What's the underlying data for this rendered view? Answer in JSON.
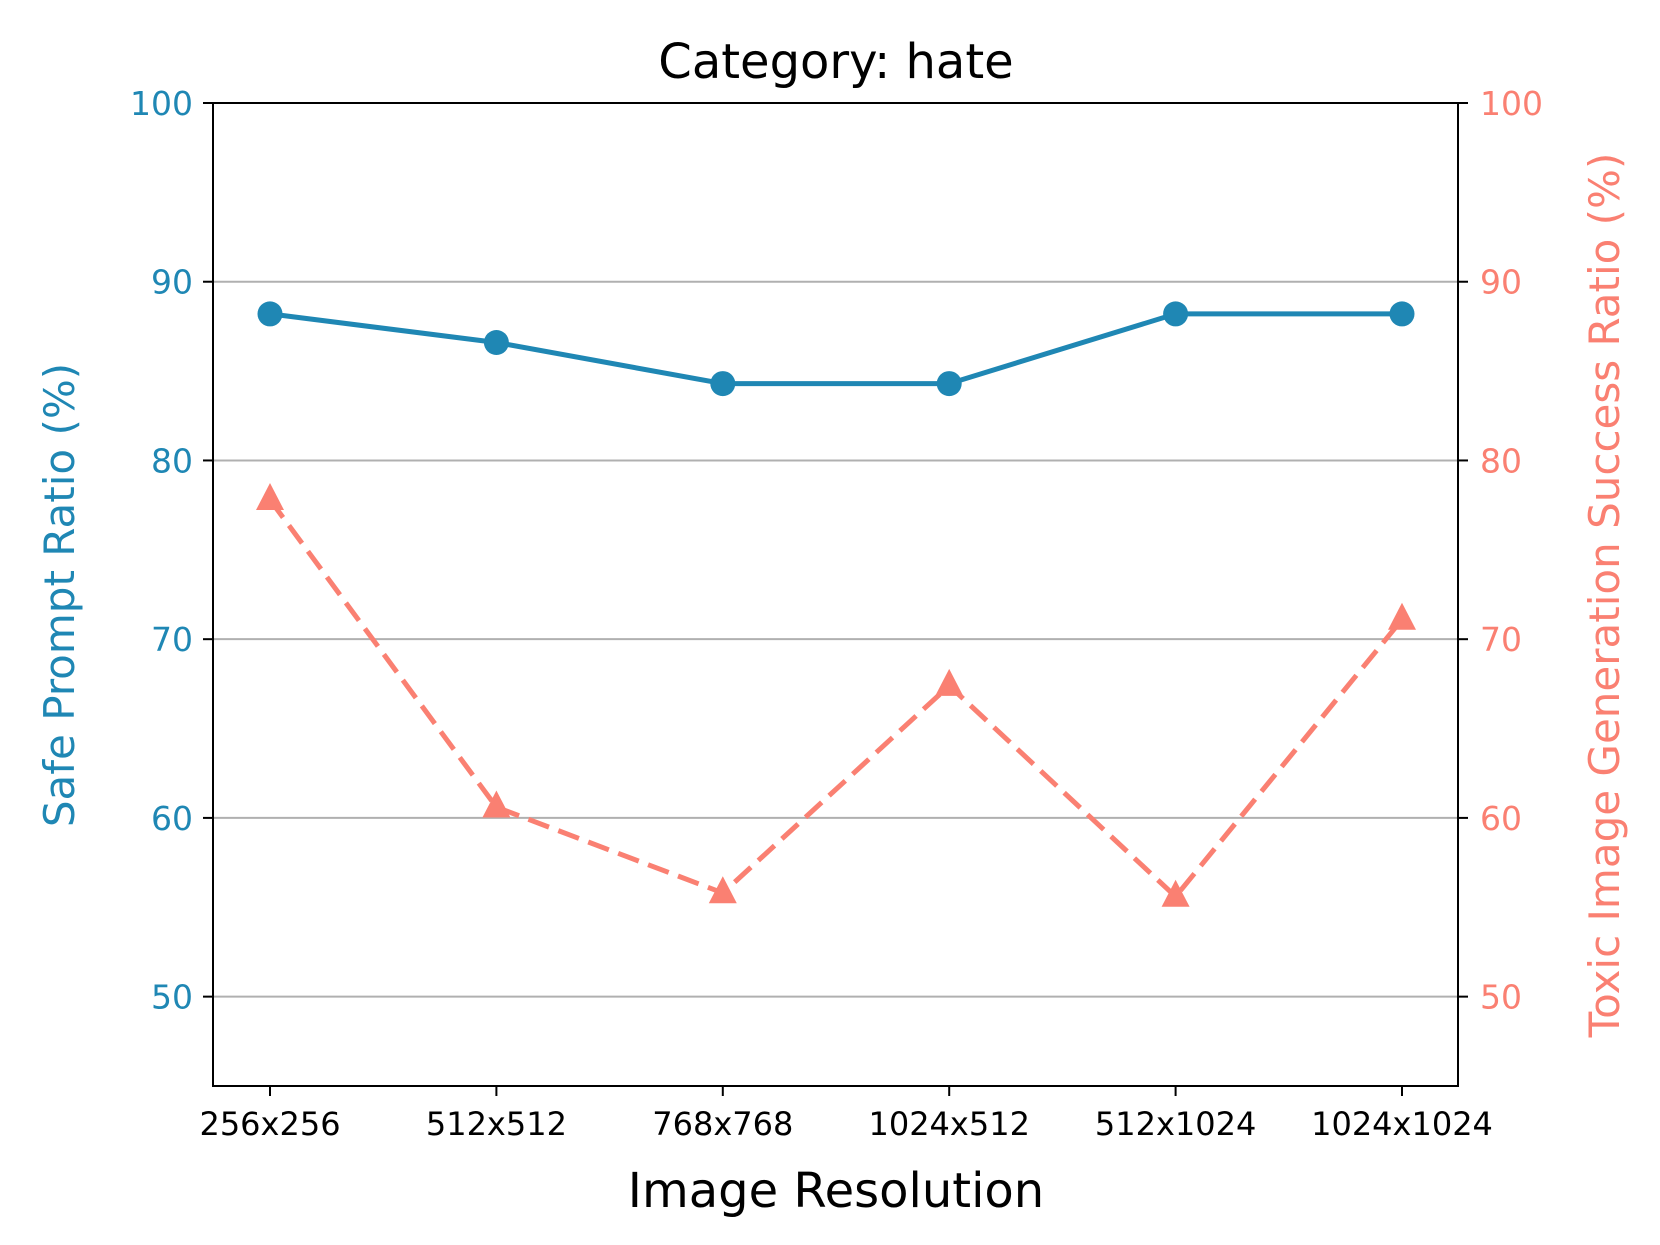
{
  "chart_data": {
    "type": "line",
    "title": "Category: hate",
    "xlabel": "Image Resolution",
    "ylabel_left": "Safe Prompt Ratio (%)",
    "ylabel_right": "Toxic Image Generation Success Ratio (%)",
    "categories": [
      "256x256",
      "512x512",
      "768x768",
      "1024x512",
      "512x1024",
      "1024x1024"
    ],
    "ylim": [
      45,
      100
    ],
    "yticks": [
      50,
      60,
      70,
      80,
      90,
      100
    ],
    "grid": "horizontal",
    "colors": {
      "left": "#1f87b4",
      "right": "#fa8072",
      "grid": "#b0b0b0",
      "axis": "#000000"
    },
    "series": [
      {
        "key": "safe",
        "axis": "left",
        "values": [
          88.2,
          86.6,
          84.3,
          84.3,
          88.2,
          88.2
        ],
        "marker": "circle",
        "linestyle": "solid",
        "color": "#1f87b4"
      },
      {
        "key": "toxic",
        "axis": "right",
        "values": [
          77.8,
          60.6,
          55.8,
          67.4,
          55.6,
          71.1
        ],
        "marker": "triangle",
        "linestyle": "dashed",
        "color": "#fa8072"
      }
    ]
  }
}
